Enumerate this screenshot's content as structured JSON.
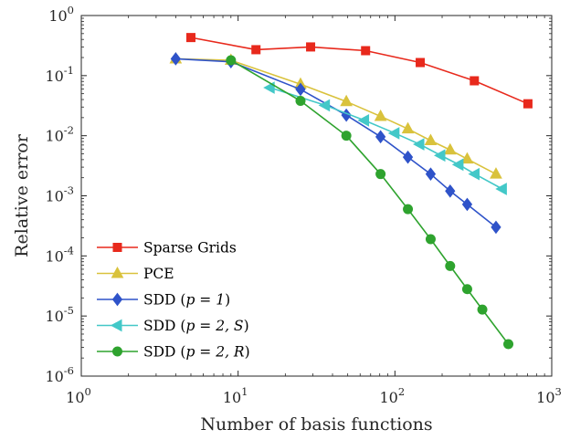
{
  "chart_data": {
    "type": "line",
    "xlabel": "Number of basis functions",
    "ylabel": "Relative error",
    "xscale": "log",
    "yscale": "log",
    "xlim": [
      1,
      1000
    ],
    "ylim": [
      1e-06,
      1
    ],
    "x_ticks": [
      {
        "value": 1,
        "base": "10",
        "exp": "0"
      },
      {
        "value": 10,
        "base": "10",
        "exp": "1"
      },
      {
        "value": 100,
        "base": "10",
        "exp": "2"
      },
      {
        "value": 1000,
        "base": "10",
        "exp": "3"
      }
    ],
    "y_ticks": [
      {
        "value": 1,
        "base": "10",
        "exp": "0"
      },
      {
        "value": 0.1,
        "base": "10",
        "exp": "-1"
      },
      {
        "value": 0.01,
        "base": "10",
        "exp": "-2"
      },
      {
        "value": 0.001,
        "base": "10",
        "exp": "-3"
      },
      {
        "value": 0.0001,
        "base": "10",
        "exp": "-4"
      },
      {
        "value": 1e-05,
        "base": "10",
        "exp": "-5"
      },
      {
        "value": 1e-06,
        "base": "10",
        "exp": "-6"
      }
    ],
    "grid": false,
    "legend_position": "bottom-left",
    "series": [
      {
        "name": "Sparse Grids",
        "legend_prefix": "Sparse Grids",
        "legend_math": "",
        "legend_suffix": "",
        "color": "#e8291c",
        "marker": "square",
        "x": [
          5,
          13,
          29,
          65,
          145,
          321,
          705
        ],
        "y": [
          0.43,
          0.27,
          0.3,
          0.26,
          0.165,
          0.082,
          0.034
        ]
      },
      {
        "name": "PCE",
        "legend_prefix": "PCE",
        "legend_math": "",
        "legend_suffix": "",
        "color": "#d9c23c",
        "marker": "triangle-up",
        "x": [
          4,
          9,
          25,
          49,
          81,
          121,
          169,
          225,
          289,
          441
        ],
        "y": [
          0.19,
          0.18,
          0.072,
          0.037,
          0.021,
          0.013,
          0.0083,
          0.0058,
          0.0041,
          0.0023
        ]
      },
      {
        "name": "SDD (p = 1)",
        "legend_prefix": "SDD (",
        "legend_math": "p = 1",
        "legend_suffix": ")",
        "color": "#2f53c9",
        "marker": "diamond",
        "x": [
          4,
          9,
          25,
          49,
          81,
          121,
          169,
          225,
          289,
          441
        ],
        "y": [
          0.19,
          0.17,
          0.059,
          0.022,
          0.0096,
          0.0044,
          0.0023,
          0.0012,
          0.00072,
          0.0003
        ]
      },
      {
        "name": "SDD (p = 2, S)",
        "legend_prefix": "SDD (",
        "legend_math": "p = 2, S",
        "legend_suffix": ")",
        "color": "#43c8c8",
        "marker": "triangle-left",
        "x": [
          16,
          36,
          64,
          100,
          144,
          196,
          256,
          324,
          484
        ],
        "y": [
          0.063,
          0.032,
          0.018,
          0.011,
          0.0072,
          0.0047,
          0.0033,
          0.0023,
          0.0013
        ]
      },
      {
        "name": "SDD (p = 2, R)",
        "legend_prefix": "SDD (",
        "legend_math": "p = 2, R",
        "legend_suffix": ")",
        "color": "#2ea32e",
        "marker": "circle",
        "x": [
          9,
          25,
          49,
          81,
          121,
          169,
          225,
          289,
          361,
          529
        ],
        "y": [
          0.18,
          0.038,
          0.01,
          0.0023,
          0.0006,
          0.00019,
          6.8e-05,
          2.8e-05,
          1.28e-05,
          3.4e-06
        ]
      }
    ]
  }
}
